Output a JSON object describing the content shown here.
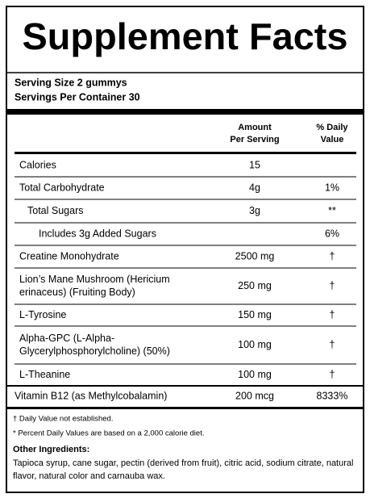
{
  "header": {
    "title": "Supplement Facts"
  },
  "serving": {
    "size": "Serving Size 2 gummys",
    "servings_per_container": "Servings Per Container 30"
  },
  "table": {
    "columns": [
      "Amount",
      "Per Serving",
      "% Daily",
      "Value"
    ],
    "rows": [
      [
        "Calories",
        "15",
        null
      ],
      [
        "Total Carbohydrate",
        "4g",
        "1%"
      ],
      [
        "Total Sugars",
        "3g",
        "**"
      ],
      [
        "Includes 3g Added Sugars",
        null,
        "6%"
      ],
      [
        "Creatine Monohydrate",
        "2500 mg",
        "†"
      ],
      [
        [
          "Lion’s Mane Mushroom (Hericium",
          "erinaceus) (Fruiting Body)"
        ],
        "250 mg",
        "†"
      ],
      [
        "L-Tyrosine",
        "150 mg",
        "†"
      ],
      [
        [
          "Alpha-GPC (L-Alpha-",
          "Glycerylphosphorylcholine) (50%)"
        ],
        "100 mg",
        "†"
      ],
      [
        "L-Theanine",
        "100 mg",
        "†"
      ],
      [
        "Vitamin B12 (as Methylcobalamin)",
        "200 mcg",
        "8333%"
      ]
    ]
  },
  "footnotes": [
    "† Daily Value not established.",
    "* Percent Daily Values are based on a 2,000 calorie diet."
  ],
  "other_ingredients": {
    "label": "Other Ingredients:",
    "text": [
      "Tapioca syrup, cane sugar, pectin (derived from fruit), citric acid, sodium citrate, natural",
      "flavor, natural color and carnauba wax."
    ]
  }
}
